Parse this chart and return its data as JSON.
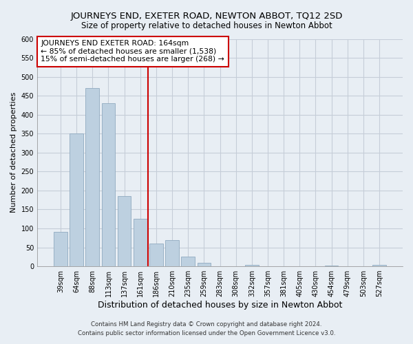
{
  "title": "JOURNEYS END, EXETER ROAD, NEWTON ABBOT, TQ12 2SD",
  "subtitle": "Size of property relative to detached houses in Newton Abbot",
  "xlabel": "Distribution of detached houses by size in Newton Abbot",
  "ylabel": "Number of detached properties",
  "bar_color": "#bdd0e0",
  "bar_edge_color": "#90aac0",
  "categories": [
    "39sqm",
    "64sqm",
    "88sqm",
    "113sqm",
    "137sqm",
    "161sqm",
    "186sqm",
    "210sqm",
    "235sqm",
    "259sqm",
    "283sqm",
    "308sqm",
    "332sqm",
    "357sqm",
    "381sqm",
    "405sqm",
    "430sqm",
    "454sqm",
    "479sqm",
    "503sqm",
    "527sqm"
  ],
  "values": [
    90,
    350,
    470,
    430,
    185,
    125,
    60,
    70,
    25,
    10,
    0,
    0,
    3,
    0,
    0,
    0,
    0,
    2,
    0,
    0,
    3
  ],
  "ylim": [
    0,
    600
  ],
  "yticks": [
    0,
    50,
    100,
    150,
    200,
    250,
    300,
    350,
    400,
    450,
    500,
    550,
    600
  ],
  "property_line_label": "JOURNEYS END EXETER ROAD: 164sqm",
  "annotation_line1": "← 85% of detached houses are smaller (1,538)",
  "annotation_line2": "15% of semi-detached houses are larger (268) →",
  "footer1": "Contains HM Land Registry data © Crown copyright and database right 2024.",
  "footer2": "Contains public sector information licensed under the Open Government Licence v3.0.",
  "bg_color": "#e8eef4",
  "plot_bg_color": "#e8eef4",
  "grid_color": "#c5cdd8"
}
